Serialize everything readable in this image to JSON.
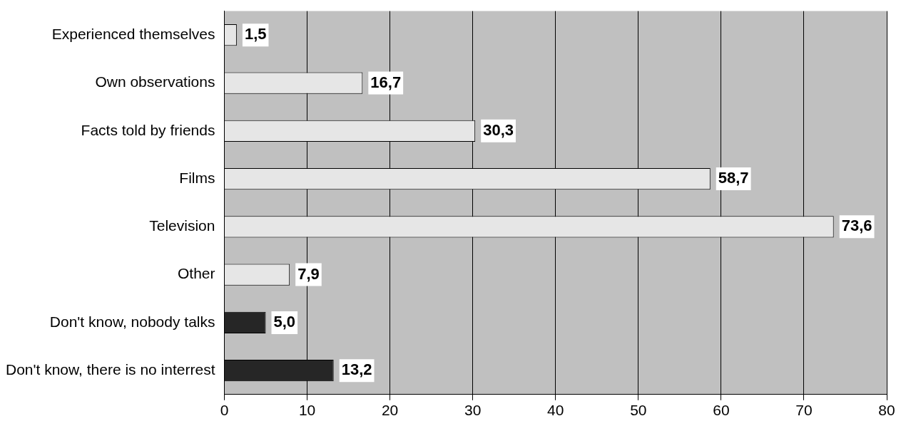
{
  "chart_data": {
    "type": "bar",
    "orientation": "horizontal",
    "categories": [
      "Experienced themselves",
      "Own observations",
      "Facts told by friends",
      "Films",
      "Television",
      "Other",
      "Don't know, nobody talks",
      "Don't know, there is no interrest"
    ],
    "values": [
      1.5,
      16.7,
      30.3,
      58.7,
      73.6,
      7.9,
      5.0,
      13.2
    ],
    "value_labels": [
      "1,5",
      "16,7",
      "30,3",
      "58,7",
      "73,6",
      "7,9",
      "5,0",
      "13,2"
    ],
    "colors": [
      "#e6e6e6",
      "#e6e6e6",
      "#e6e6e6",
      "#e6e6e6",
      "#e6e6e6",
      "#e6e6e6",
      "#262626",
      "#262626"
    ],
    "xlim": [
      0,
      80
    ],
    "xticks": [
      0,
      10,
      20,
      30,
      40,
      50,
      60,
      70,
      80
    ],
    "grid": "x"
  }
}
